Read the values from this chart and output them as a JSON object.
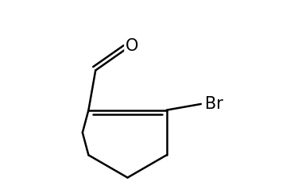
{
  "background_color": "#ffffff",
  "line_color": "#000000",
  "line_width": 1.8,
  "figsize": [
    3.65,
    2.43
  ],
  "dpi": 100,
  "br_label": {
    "text": "Br",
    "fontsize": 15
  },
  "o_label": {
    "text": "O",
    "fontsize": 15
  }
}
